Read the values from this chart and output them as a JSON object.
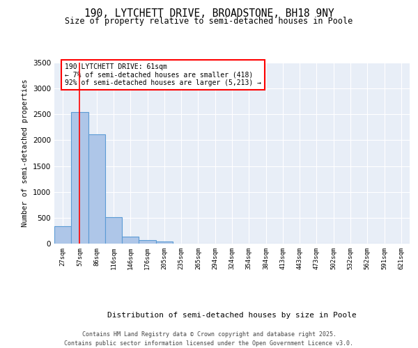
{
  "title": "190, LYTCHETT DRIVE, BROADSTONE, BH18 9NY",
  "subtitle": "Size of property relative to semi-detached houses in Poole",
  "xlabel": "Distribution of semi-detached houses by size in Poole",
  "ylabel": "Number of semi-detached properties",
  "bar_labels": [
    "27sqm",
    "57sqm",
    "86sqm",
    "116sqm",
    "146sqm",
    "176sqm",
    "205sqm",
    "235sqm",
    "265sqm",
    "294sqm",
    "324sqm",
    "354sqm",
    "384sqm",
    "413sqm",
    "443sqm",
    "473sqm",
    "502sqm",
    "532sqm",
    "562sqm",
    "591sqm",
    "621sqm"
  ],
  "bar_values": [
    330,
    2540,
    2110,
    510,
    140,
    65,
    40,
    0,
    0,
    0,
    0,
    0,
    0,
    0,
    0,
    0,
    0,
    0,
    0,
    0,
    0
  ],
  "bar_color": "#aec6e8",
  "bar_edge_color": "#5b9bd5",
  "bg_color": "#e8eef7",
  "grid_color": "#ffffff",
  "red_line_x": 1,
  "annotation_title": "190 LYTCHETT DRIVE: 61sqm",
  "annotation_line1": "← 7% of semi-detached houses are smaller (418)",
  "annotation_line2": "92% of semi-detached houses are larger (5,213) →",
  "footer_line1": "Contains HM Land Registry data © Crown copyright and database right 2025.",
  "footer_line2": "Contains public sector information licensed under the Open Government Licence v3.0.",
  "ylim": [
    0,
    3500
  ],
  "yticks": [
    0,
    500,
    1000,
    1500,
    2000,
    2500,
    3000,
    3500
  ]
}
